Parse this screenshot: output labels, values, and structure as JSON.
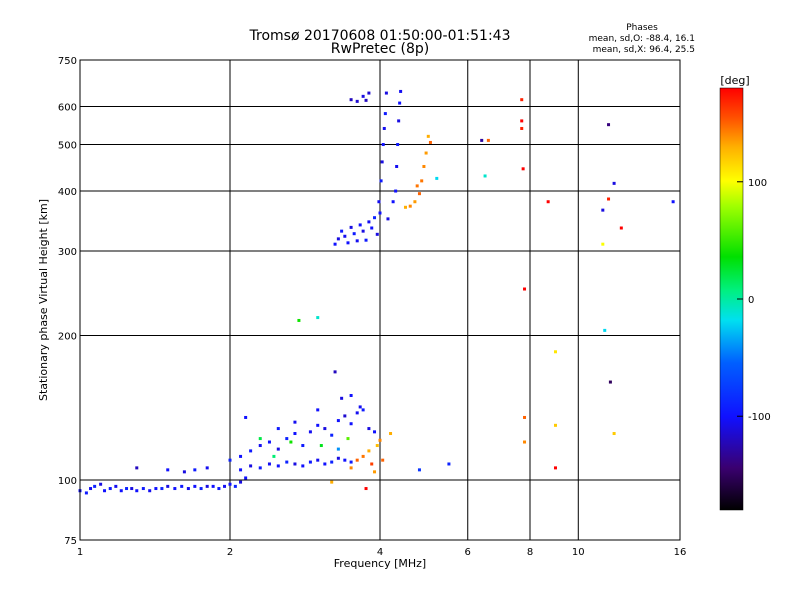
{
  "chart_data": {
    "type": "scatter",
    "title": "Tromsø 20170608 01:50:00-01:51:43",
    "subtitle": "RwPretec (8p)",
    "xlabel": "Frequency [MHz]",
    "ylabel": "Stationary phase Virtual Height [km]",
    "x_scale": "log",
    "y_scale": "log",
    "xlim": [
      1,
      16
    ],
    "ylim": [
      75,
      750
    ],
    "x_ticks": [
      1,
      2,
      4,
      6,
      8,
      10,
      16
    ],
    "y_ticks": [
      75,
      100,
      200,
      300,
      400,
      500,
      600,
      750
    ],
    "grid": true,
    "phase_info": {
      "heading": "Phases",
      "o_mode": "mean, sd,O:  -88.4, 16.1",
      "x_mode": "mean, sd,X:  96.4, 25.5"
    },
    "colorbar": {
      "label": "[deg]",
      "range": [
        -180,
        180
      ],
      "ticks": [
        100,
        0,
        -100
      ],
      "tick_labels": [
        "100",
        "0",
        "-100"
      ]
    },
    "series": [
      {
        "values": [
          [
            1.0,
            95,
            -100
          ],
          [
            1.03,
            94,
            -95
          ],
          [
            1.05,
            96,
            -105
          ],
          [
            1.07,
            97,
            -90
          ],
          [
            1.1,
            98,
            -110
          ],
          [
            1.12,
            95,
            -100
          ],
          [
            1.15,
            96,
            -95
          ],
          [
            1.18,
            97,
            -105
          ],
          [
            1.21,
            95,
            -100
          ],
          [
            1.24,
            96,
            -90
          ],
          [
            1.27,
            96,
            -110
          ],
          [
            1.3,
            95,
            -100
          ],
          [
            1.34,
            96,
            -95
          ],
          [
            1.38,
            95,
            -105
          ],
          [
            1.42,
            96,
            -100
          ],
          [
            1.46,
            96,
            -90
          ],
          [
            1.5,
            97,
            -110
          ],
          [
            1.55,
            96,
            -100
          ],
          [
            1.6,
            97,
            -95
          ],
          [
            1.65,
            96,
            -105
          ],
          [
            1.7,
            97,
            -100
          ],
          [
            1.75,
            96,
            -90
          ],
          [
            1.8,
            97,
            -110
          ],
          [
            1.85,
            97,
            -100
          ],
          [
            1.9,
            96,
            -95
          ],
          [
            1.95,
            97,
            -105
          ],
          [
            2.0,
            98,
            -100
          ],
          [
            2.05,
            97,
            -90
          ],
          [
            2.1,
            99,
            -110
          ],
          [
            2.15,
            101,
            -100
          ],
          [
            1.3,
            106,
            -120
          ],
          [
            1.5,
            105,
            -100
          ],
          [
            1.62,
            104,
            -110
          ],
          [
            1.7,
            105,
            -95
          ],
          [
            1.8,
            106,
            -105
          ],
          [
            2.1,
            105,
            -100
          ],
          [
            2.2,
            107,
            -110
          ],
          [
            2.3,
            106,
            -95
          ],
          [
            2.4,
            108,
            -105
          ],
          [
            2.5,
            107,
            -100
          ],
          [
            2.6,
            109,
            -90
          ],
          [
            2.7,
            108,
            -110
          ],
          [
            2.8,
            107,
            -100
          ],
          [
            2.9,
            109,
            -95
          ],
          [
            3.0,
            110,
            -105
          ],
          [
            3.1,
            108,
            -100
          ],
          [
            3.2,
            109,
            -90
          ],
          [
            3.3,
            111,
            -110
          ],
          [
            3.4,
            110,
            -100
          ],
          [
            3.5,
            109,
            -95
          ],
          [
            2.0,
            110,
            -90
          ],
          [
            2.1,
            112,
            -100
          ],
          [
            2.2,
            115,
            -95
          ],
          [
            2.3,
            118,
            -105
          ],
          [
            2.4,
            120,
            -100
          ],
          [
            2.5,
            116,
            -110
          ],
          [
            2.6,
            122,
            -90
          ],
          [
            2.7,
            125,
            -100
          ],
          [
            2.8,
            118,
            -95
          ],
          [
            2.9,
            126,
            -105
          ],
          [
            3.0,
            130,
            -100
          ],
          [
            3.1,
            128,
            -110
          ],
          [
            3.2,
            124,
            -90
          ],
          [
            3.3,
            133,
            -100
          ],
          [
            3.4,
            136,
            -115
          ],
          [
            3.5,
            131,
            -100
          ],
          [
            3.6,
            138,
            -105
          ],
          [
            3.7,
            140,
            -95
          ],
          [
            3.8,
            128,
            -110
          ],
          [
            3.9,
            126,
            -100
          ],
          [
            2.15,
            135,
            -100
          ],
          [
            2.5,
            128,
            -95
          ],
          [
            2.7,
            132,
            -105
          ],
          [
            3.0,
            140,
            -100
          ],
          [
            3.25,
            168,
            -120
          ],
          [
            3.35,
            148,
            -110
          ],
          [
            3.5,
            150,
            -100
          ],
          [
            3.65,
            142,
            -105
          ],
          [
            2.3,
            122,
            20
          ],
          [
            2.65,
            120,
            40
          ],
          [
            3.05,
            118,
            30
          ],
          [
            3.3,
            116,
            -40
          ],
          [
            3.45,
            122,
            60
          ],
          [
            2.45,
            112,
            10
          ],
          [
            3.2,
            99,
            130
          ],
          [
            3.5,
            106,
            140
          ],
          [
            3.6,
            110,
            150
          ],
          [
            3.7,
            112,
            145
          ],
          [
            3.8,
            115,
            130
          ],
          [
            3.85,
            108,
            160
          ],
          [
            3.9,
            104,
            135
          ],
          [
            3.95,
            118,
            125
          ],
          [
            4.0,
            121,
            140
          ],
          [
            3.75,
            96,
            180
          ],
          [
            4.05,
            110,
            150
          ],
          [
            4.2,
            125,
            130
          ],
          [
            3.25,
            310,
            -100
          ],
          [
            3.3,
            318,
            -110
          ],
          [
            3.35,
            330,
            -95
          ],
          [
            3.4,
            322,
            -105
          ],
          [
            3.45,
            312,
            -100
          ],
          [
            3.5,
            336,
            -110
          ],
          [
            3.55,
            326,
            -95
          ],
          [
            3.6,
            315,
            -105
          ],
          [
            3.65,
            340,
            -100
          ],
          [
            3.7,
            330,
            -110
          ],
          [
            3.75,
            316,
            -95
          ],
          [
            3.8,
            345,
            -105
          ],
          [
            3.85,
            335,
            -100
          ],
          [
            3.9,
            352,
            -90
          ],
          [
            3.95,
            325,
            -110
          ],
          [
            4.0,
            360,
            -100
          ],
          [
            3.98,
            380,
            -105
          ],
          [
            4.02,
            420,
            -95
          ],
          [
            4.04,
            460,
            -110
          ],
          [
            4.06,
            500,
            -100
          ],
          [
            4.08,
            540,
            -105
          ],
          [
            4.1,
            580,
            -95
          ],
          [
            4.12,
            640,
            -110
          ],
          [
            4.3,
            400,
            -100
          ],
          [
            4.32,
            450,
            -105
          ],
          [
            4.34,
            500,
            -95
          ],
          [
            4.36,
            560,
            -110
          ],
          [
            4.38,
            610,
            -100
          ],
          [
            4.4,
            645,
            -105
          ],
          [
            4.25,
            380,
            -100
          ],
          [
            4.15,
            350,
            -110
          ],
          [
            3.5,
            620,
            -120
          ],
          [
            3.6,
            615,
            -115
          ],
          [
            3.7,
            630,
            -110
          ],
          [
            3.8,
            640,
            -115
          ],
          [
            3.75,
            618,
            -120
          ],
          [
            4.5,
            370,
            130
          ],
          [
            4.6,
            372,
            140
          ],
          [
            4.7,
            380,
            135
          ],
          [
            4.8,
            395,
            150
          ],
          [
            4.85,
            420,
            145
          ],
          [
            4.9,
            450,
            140
          ],
          [
            4.95,
            480,
            135
          ],
          [
            5.0,
            520,
            130
          ],
          [
            4.75,
            410,
            145
          ],
          [
            5.05,
            505,
            150
          ],
          [
            2.75,
            215,
            40
          ],
          [
            3.0,
            218,
            -10
          ],
          [
            5.2,
            425,
            -20
          ],
          [
            4.8,
            105,
            -80
          ],
          [
            5.5,
            108,
            -90
          ],
          [
            6.4,
            510,
            -130
          ],
          [
            6.5,
            430,
            -10
          ],
          [
            6.6,
            510,
            150
          ],
          [
            7.7,
            620,
            170
          ],
          [
            7.7,
            560,
            180
          ],
          [
            7.7,
            540,
            170
          ],
          [
            7.75,
            445,
            190
          ],
          [
            7.8,
            250,
            200
          ],
          [
            7.8,
            135,
            150
          ],
          [
            7.8,
            120,
            140
          ],
          [
            8.7,
            380,
            190
          ],
          [
            9.0,
            185,
            110
          ],
          [
            9.0,
            130,
            120
          ],
          [
            9.0,
            106,
            190
          ],
          [
            11.2,
            310,
            100
          ],
          [
            11.2,
            365,
            -110
          ],
          [
            11.3,
            205,
            -20
          ],
          [
            11.5,
            550,
            -140
          ],
          [
            11.5,
            385,
            170
          ],
          [
            11.6,
            160,
            -150
          ],
          [
            11.8,
            415,
            -110
          ],
          [
            11.8,
            125,
            120
          ],
          [
            12.2,
            335,
            200
          ],
          [
            15.5,
            380,
            -100
          ]
        ]
      }
    ]
  }
}
